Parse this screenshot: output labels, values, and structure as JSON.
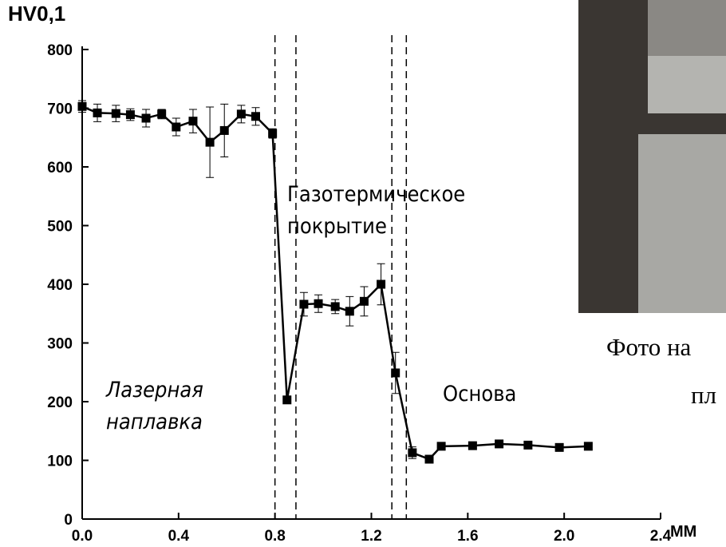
{
  "chart_data": {
    "type": "line",
    "y_label": "HV0,1",
    "x_label": "MM",
    "xlim": [
      0,
      2.4
    ],
    "ylim": [
      0,
      800
    ],
    "xticks": [
      {
        "value": 0,
        "label": "0.0"
      },
      0.4,
      {
        "value": 0.8,
        "label": "0.8"
      },
      1.2,
      1.6,
      {
        "value": 2,
        "label": "2.0"
      },
      2.4
    ],
    "yticks": [
      0,
      100,
      200,
      300,
      400,
      500,
      600,
      700,
      800
    ],
    "series": [
      {
        "color": "#000000",
        "x": [
          0,
          0.063,
          0.14,
          0.2,
          0.265,
          0.33,
          0.39,
          0.46,
          0.53,
          0.59,
          0.66,
          0.72,
          0.79,
          0.85,
          0.92,
          0.98,
          1.05,
          1.11,
          1.17,
          1.24,
          1.3,
          1.37,
          1.44,
          1.49,
          1.62,
          1.73,
          1.85,
          1.98,
          2.1
        ],
        "values": [
          703,
          692,
          691,
          689,
          683,
          690,
          668,
          678,
          642,
          662,
          690,
          686,
          657,
          203,
          366,
          367,
          362,
          354,
          371,
          400,
          249,
          113,
          102,
          124,
          125,
          128,
          126,
          122,
          124
        ],
        "errors": [
          10,
          15,
          14,
          10,
          15,
          8,
          15,
          20,
          60,
          45,
          15,
          15,
          8,
          null,
          20,
          15,
          12,
          25,
          25,
          35,
          35,
          10,
          null,
          null,
          null,
          null,
          null,
          null,
          null
        ]
      }
    ],
    "vlines": [
      0.8,
      0.887,
      1.285,
      1.345
    ],
    "annotations": [
      "Лазерная",
      "наплавка",
      "Газотермическое",
      "покрытие",
      "Основа"
    ],
    "caption": [
      "Фото на",
      "пл"
    ]
  }
}
